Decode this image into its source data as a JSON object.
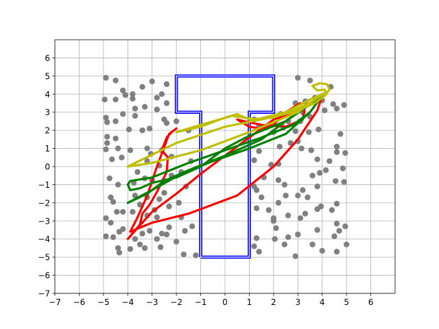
{
  "chart_data": {
    "type": "scatter",
    "title": "",
    "xlabel": "",
    "ylabel": "",
    "xlim": [
      -7,
      7
    ],
    "ylim": [
      -7,
      7
    ],
    "xticks": [
      -7,
      -6,
      -5,
      -4,
      -3,
      -2,
      -1,
      0,
      1,
      2,
      3,
      4,
      5,
      6
    ],
    "yticks": [
      -7,
      -6,
      -5,
      -4,
      -3,
      -2,
      -1,
      0,
      1,
      2,
      3,
      4,
      5,
      6
    ],
    "grid": true,
    "colors": {
      "points": "#808080",
      "obstacle": "#0000ff",
      "path_red": "#ff0000",
      "path_green": "#008000",
      "path_yellow": "#bfbf00"
    },
    "scatter_points": [
      [
        -4.9,
        4.9
      ],
      [
        -4.5,
        4.75
      ],
      [
        -4.2,
        4.2
      ],
      [
        -4.1,
        3.95
      ],
      [
        -4.5,
        3.7
      ],
      [
        -4.95,
        3.7
      ],
      [
        -3.8,
        4.0
      ],
      [
        -3.4,
        4.4
      ],
      [
        -3.0,
        4.7
      ],
      [
        -2.6,
        4.0
      ],
      [
        -2.8,
        3.8
      ],
      [
        -2.4,
        4.55
      ],
      [
        -3.7,
        3.2
      ],
      [
        -3.3,
        3.3
      ],
      [
        -3.8,
        3.75
      ],
      [
        -4.2,
        2.9
      ],
      [
        -4.9,
        2.7
      ],
      [
        -4.85,
        2.45
      ],
      [
        -4.5,
        2.5
      ],
      [
        -3.7,
        2.8
      ],
      [
        -2.8,
        3.15
      ],
      [
        -2.4,
        3.5
      ],
      [
        -3.95,
        2.05
      ],
      [
        -3.4,
        2.0
      ],
      [
        -3.1,
        2.1
      ],
      [
        -2.4,
        2.4
      ],
      [
        -2.5,
        2.6
      ],
      [
        -2.0,
        2.5
      ],
      [
        -1.5,
        2.0
      ],
      [
        -4.85,
        1.65
      ],
      [
        -4.85,
        1.3
      ],
      [
        -4.5,
        1.55
      ],
      [
        -4.4,
        1.0
      ],
      [
        -4.9,
        0.95
      ],
      [
        -4.65,
        0.4
      ],
      [
        -4.25,
        0.5
      ],
      [
        -3.9,
        0.9
      ],
      [
        -3.2,
        1.0
      ],
      [
        -3.05,
        0.7
      ],
      [
        -2.6,
        0.9
      ],
      [
        -3.2,
        0.3
      ],
      [
        -2.2,
        0.55
      ],
      [
        -2.7,
        0.05
      ],
      [
        -3.6,
        -0.3
      ],
      [
        -3.75,
        -0.9
      ],
      [
        -4.4,
        -1.0
      ],
      [
        -4.75,
        -0.65
      ],
      [
        -3.3,
        -0.65
      ],
      [
        -3.0,
        -0.75
      ],
      [
        -2.5,
        -0.8
      ],
      [
        -2.2,
        -0.5
      ],
      [
        -1.8,
        -0.3
      ],
      [
        -1.4,
        0.3
      ],
      [
        -1.6,
        -1.1
      ],
      [
        -4.7,
        -1.7
      ],
      [
        -4.6,
        -1.95
      ],
      [
        -3.7,
        -1.6
      ],
      [
        -3.2,
        -1.7
      ],
      [
        -2.7,
        -1.8
      ],
      [
        -2.5,
        -1.45
      ],
      [
        -4.45,
        -2.5
      ],
      [
        -4.2,
        -2.5
      ],
      [
        -3.8,
        -2.5
      ],
      [
        -3.5,
        -2.1
      ],
      [
        -2.9,
        -2.4
      ],
      [
        -2.3,
        -2.2
      ],
      [
        -1.9,
        -2.0
      ],
      [
        -4.9,
        -2.85
      ],
      [
        -4.7,
        -3.1
      ],
      [
        -3.2,
        -2.7
      ],
      [
        -2.8,
        -2.8
      ],
      [
        -1.8,
        -2.8
      ],
      [
        -1.35,
        -3.3
      ],
      [
        -4.35,
        -3.6
      ],
      [
        -4.2,
        -3.45
      ],
      [
        -3.4,
        -3.7
      ],
      [
        -3.1,
        -3.55
      ],
      [
        -2.4,
        -3.75
      ],
      [
        -2.3,
        -3.35
      ],
      [
        -1.65,
        -3.55
      ],
      [
        -4.9,
        -3.85
      ],
      [
        -4.6,
        -3.9
      ],
      [
        -3.7,
        -4.0
      ],
      [
        -2.8,
        -4.0
      ],
      [
        -2.6,
        -3.7
      ],
      [
        -4.4,
        -4.5
      ],
      [
        -4.35,
        -4.75
      ],
      [
        -3.5,
        -4.3
      ],
      [
        -3.3,
        -4.5
      ],
      [
        -2.65,
        -4.45
      ],
      [
        -2.0,
        -4.15
      ],
      [
        -1.7,
        -4.85
      ],
      [
        -1.2,
        -4.9
      ],
      [
        -3.9,
        -4.55
      ],
      [
        3.0,
        4.9
      ],
      [
        3.5,
        4.75
      ],
      [
        4.35,
        4.4
      ],
      [
        3.7,
        3.8
      ],
      [
        3.3,
        3.6
      ],
      [
        2.9,
        3.5
      ],
      [
        4.0,
        3.65
      ],
      [
        4.45,
        3.45
      ],
      [
        4.9,
        3.4
      ],
      [
        3.2,
        3.0
      ],
      [
        2.3,
        2.9
      ],
      [
        2.6,
        2.5
      ],
      [
        4.6,
        3.2
      ],
      [
        4.1,
        3.1
      ],
      [
        3.5,
        2.75
      ],
      [
        3.1,
        2.5
      ],
      [
        2.4,
        2.15
      ],
      [
        2.0,
        1.9
      ],
      [
        1.2,
        2.6
      ],
      [
        1.4,
        2.25
      ],
      [
        2.9,
        1.95
      ],
      [
        3.45,
        1.9
      ],
      [
        3.85,
        2.05
      ],
      [
        4.75,
        1.8
      ],
      [
        4.6,
        1.1
      ],
      [
        4.95,
        0.75
      ],
      [
        4.6,
        0.8
      ],
      [
        4.3,
        0.3
      ],
      [
        3.8,
        0.4
      ],
      [
        3.55,
        0.9
      ],
      [
        3.15,
        1.0
      ],
      [
        3.0,
        1.4
      ],
      [
        2.7,
        1.3
      ],
      [
        2.25,
        1.1
      ],
      [
        2.2,
        0.15
      ],
      [
        1.9,
        0.1
      ],
      [
        1.4,
        0.85
      ],
      [
        1.2,
        0.35
      ],
      [
        3.9,
        -0.35
      ],
      [
        3.6,
        -0.5
      ],
      [
        4.15,
        -0.2
      ],
      [
        4.85,
        -0.1
      ],
      [
        4.9,
        -0.85
      ],
      [
        4.55,
        -0.8
      ],
      [
        3.8,
        -1.1
      ],
      [
        3.2,
        -1.3
      ],
      [
        2.45,
        -1.0
      ],
      [
        2.2,
        -0.75
      ],
      [
        1.6,
        -0.6
      ],
      [
        1.2,
        -1.1
      ],
      [
        1.3,
        -1.3
      ],
      [
        3.4,
        -1.7
      ],
      [
        3.0,
        -1.6
      ],
      [
        2.5,
        -1.6
      ],
      [
        2.2,
        -2.0
      ],
      [
        1.5,
        -1.7
      ],
      [
        1.3,
        -2.3
      ],
      [
        3.95,
        -2.2
      ],
      [
        4.6,
        -2.05
      ],
      [
        4.4,
        -2.4
      ],
      [
        3.8,
        -2.35
      ],
      [
        3.3,
        -2.6
      ],
      [
        3.1,
        -2.85
      ],
      [
        2.6,
        -2.7
      ],
      [
        2.0,
        -2.85
      ],
      [
        1.8,
        -2.4
      ],
      [
        4.6,
        -3.15
      ],
      [
        4.95,
        -3.3
      ],
      [
        4.7,
        -3.55
      ],
      [
        4.5,
        -3.85
      ],
      [
        3.8,
        -3.5
      ],
      [
        3.0,
        -3.75
      ],
      [
        2.6,
        -3.9
      ],
      [
        2.0,
        -3.0
      ],
      [
        2.1,
        -3.4
      ],
      [
        2.05,
        -4.0
      ],
      [
        1.3,
        -3.95
      ],
      [
        1.2,
        -4.4
      ],
      [
        2.45,
        -4.3
      ],
      [
        3.6,
        -4.3
      ],
      [
        4.0,
        -4.65
      ],
      [
        4.6,
        -4.7
      ],
      [
        5.0,
        -4.3
      ],
      [
        2.9,
        -4.95
      ],
      [
        1.4,
        -4.7
      ]
    ],
    "obstacle_outline": [
      [
        -1,
        -5
      ],
      [
        1,
        -5
      ],
      [
        1,
        3
      ],
      [
        2,
        3
      ],
      [
        2,
        5
      ],
      [
        -2,
        5
      ],
      [
        -2,
        3
      ],
      [
        -1,
        3
      ],
      [
        -1,
        -5
      ]
    ],
    "series": [
      {
        "color": "red",
        "values": [
          [
            3.1,
            3.5
          ],
          [
            2.5,
            3.0
          ],
          [
            2.0,
            2.3
          ],
          [
            1.5,
            2.1
          ],
          [
            1.0,
            2.2
          ],
          [
            0.5,
            2.6
          ],
          [
            0.8,
            2.5
          ],
          [
            1.5,
            2.3
          ],
          [
            2.5,
            2.2
          ],
          [
            3.2,
            2.6
          ],
          [
            3.3,
            3.4
          ],
          [
            3.8,
            3.6
          ],
          [
            4.0,
            3.9
          ],
          [
            3.0,
            3.1
          ],
          [
            2.0,
            2.6
          ],
          [
            1.0,
            1.6
          ],
          [
            0.0,
            0.6
          ],
          [
            -1.0,
            -0.4
          ],
          [
            -2.0,
            -1.5
          ],
          [
            -3.0,
            -2.5
          ],
          [
            -4.0,
            -4.0
          ],
          [
            -3.5,
            -3.2
          ],
          [
            -3.4,
            -2.6
          ],
          [
            -3.1,
            -2.1
          ],
          [
            -2.8,
            -1.4
          ],
          [
            -2.4,
            -0.3
          ],
          [
            -2.35,
            0.5
          ],
          [
            -2.6,
            0.9
          ],
          [
            -2.4,
            1.6
          ],
          [
            -2.2,
            1.9
          ],
          [
            -2.0,
            2.1
          ],
          [
            -2.3,
            1.8
          ],
          [
            -2.8,
            0.0
          ],
          [
            -3.2,
            -1.6
          ],
          [
            -3.6,
            -2.8
          ],
          [
            -3.9,
            -3.6
          ],
          [
            -3.0,
            -3.1
          ],
          [
            -1.5,
            -2.6
          ],
          [
            0.5,
            -1.6
          ],
          [
            2.0,
            0.0
          ],
          [
            3.0,
            1.5
          ],
          [
            3.8,
            3.1
          ],
          [
            4.0,
            3.9
          ]
        ]
      },
      {
        "color": "green",
        "values": [
          [
            4.0,
            3.9
          ],
          [
            2.5,
            2.5
          ],
          [
            1.0,
            1.7
          ],
          [
            0.0,
            1.0
          ],
          [
            -1.0,
            0.0
          ],
          [
            -2.0,
            -0.6
          ],
          [
            -3.0,
            -0.9
          ],
          [
            -3.5,
            -1.2
          ],
          [
            -3.9,
            -1.3
          ],
          [
            -4.0,
            -1.0
          ],
          [
            -3.9,
            -0.8
          ],
          [
            -3.0,
            -0.6
          ],
          [
            -1.5,
            0.2
          ],
          [
            0.0,
            0.9
          ],
          [
            1.5,
            1.6
          ],
          [
            2.8,
            2.3
          ],
          [
            3.5,
            3.0
          ],
          [
            4.0,
            3.9
          ],
          [
            3.0,
            3.0
          ],
          [
            1.5,
            1.5
          ],
          [
            0.0,
            0.6
          ],
          [
            -1.5,
            -0.2
          ],
          [
            -2.5,
            -0.8
          ],
          [
            -3.2,
            -1.5
          ],
          [
            -4.0,
            -2.0
          ],
          [
            -3.0,
            -1.3
          ],
          [
            -1.8,
            -0.4
          ],
          [
            -0.5,
            0.3
          ],
          [
            1.0,
            1.0
          ],
          [
            2.5,
            1.8
          ],
          [
            3.5,
            3.0
          ],
          [
            4.0,
            3.9
          ]
        ]
      },
      {
        "color": "yellow",
        "values": [
          [
            -4.0,
            0.0
          ],
          [
            -2.0,
            1.3
          ],
          [
            0.0,
            2.2
          ],
          [
            1.5,
            2.6
          ],
          [
            2.8,
            3.0
          ],
          [
            3.7,
            3.5
          ],
          [
            4.1,
            3.9
          ],
          [
            4.3,
            4.25
          ],
          [
            4.2,
            4.55
          ],
          [
            3.9,
            4.6
          ],
          [
            3.6,
            4.45
          ],
          [
            3.8,
            4.2
          ],
          [
            4.1,
            4.25
          ],
          [
            4.15,
            4.1
          ],
          [
            3.6,
            3.6
          ],
          [
            3.0,
            3.2
          ],
          [
            2.0,
            2.7
          ],
          [
            1.0,
            2.6
          ],
          [
            0.5,
            2.9
          ],
          [
            0.0,
            2.7
          ],
          [
            -1.0,
            2.2
          ],
          [
            -2.0,
            1.9
          ],
          [
            -1.0,
            2.3
          ],
          [
            0.3,
            2.8
          ],
          [
            1.3,
            2.6
          ],
          [
            2.5,
            3.0
          ],
          [
            3.5,
            3.7
          ],
          [
            4.0,
            4.0
          ],
          [
            3.0,
            3.0
          ],
          [
            1.0,
            1.9
          ],
          [
            -1.0,
            0.9
          ],
          [
            -3.0,
            0.2
          ],
          [
            -4.0,
            0.0
          ]
        ]
      }
    ]
  }
}
